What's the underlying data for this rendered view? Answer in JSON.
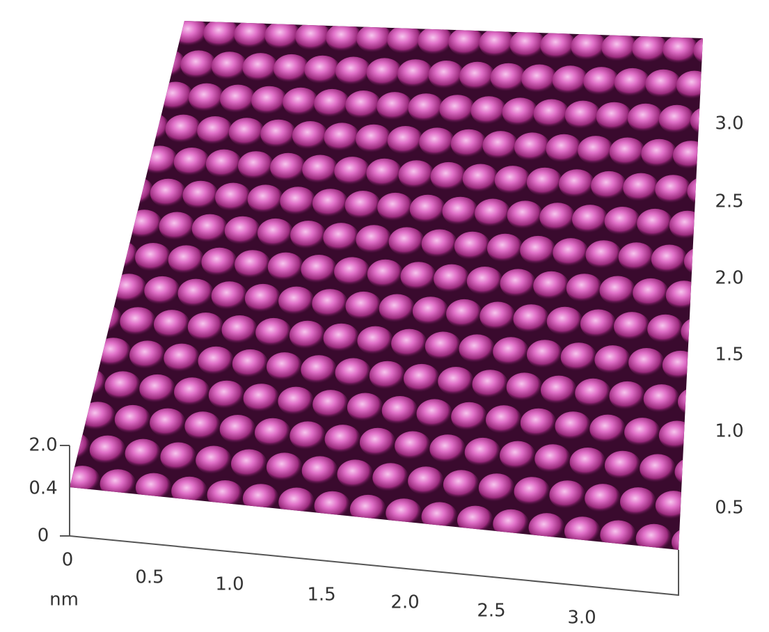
{
  "z_axis": {
    "ticks": [
      "2.0",
      "0.4",
      "0"
    ]
  },
  "x_axis": {
    "unit": "nm",
    "ticks": [
      "0",
      "0.5",
      "1.0",
      "1.5",
      "2.0",
      "2.5",
      "3.0"
    ]
  },
  "y_axis": {
    "ticks": [
      "3.0",
      "2.5",
      "2.0",
      "1.5",
      "1.0",
      "0.5"
    ]
  }
}
